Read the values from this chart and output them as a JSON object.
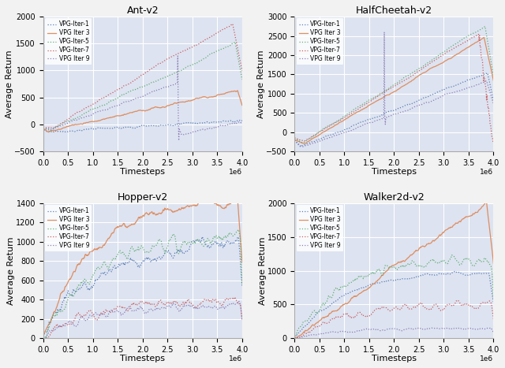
{
  "titles": [
    "Ant-v2",
    "HalfCheetah-v2",
    "Hopper-v2",
    "Walker2d-v2"
  ],
  "legend_labels": [
    "VPG-Iter-1",
    "VPG Iter 3",
    "VPG-Iter-5",
    "VPG-Iter-7",
    "VPG Iter 9"
  ],
  "colors": [
    "#4c72b0",
    "#dd8452",
    "#55a868",
    "#c44e52",
    "#8172b2"
  ],
  "xlim": [
    0,
    4000000
  ],
  "xlabel": "Timesteps",
  "ylabel": "Average Return",
  "background_color": "#dde3f0",
  "grid_color": "#ffffff",
  "fig_facecolor": "#f2f2f2",
  "ant_ylim": [
    -500,
    2000
  ],
  "ant_yticks": [
    -500,
    0,
    500,
    1000,
    1500,
    2000
  ],
  "halfcheetah_ylim": [
    -500,
    3000
  ],
  "halfcheetah_yticks": [
    -500,
    0,
    500,
    1000,
    1500,
    2000,
    2500,
    3000
  ],
  "hopper_ylim": [
    0,
    1400
  ],
  "hopper_yticks": [
    0,
    200,
    400,
    600,
    800,
    1000,
    1200,
    1400
  ],
  "walker_ylim": [
    0,
    2000
  ],
  "walker_yticks": [
    0,
    500,
    1000,
    1500,
    2000
  ]
}
